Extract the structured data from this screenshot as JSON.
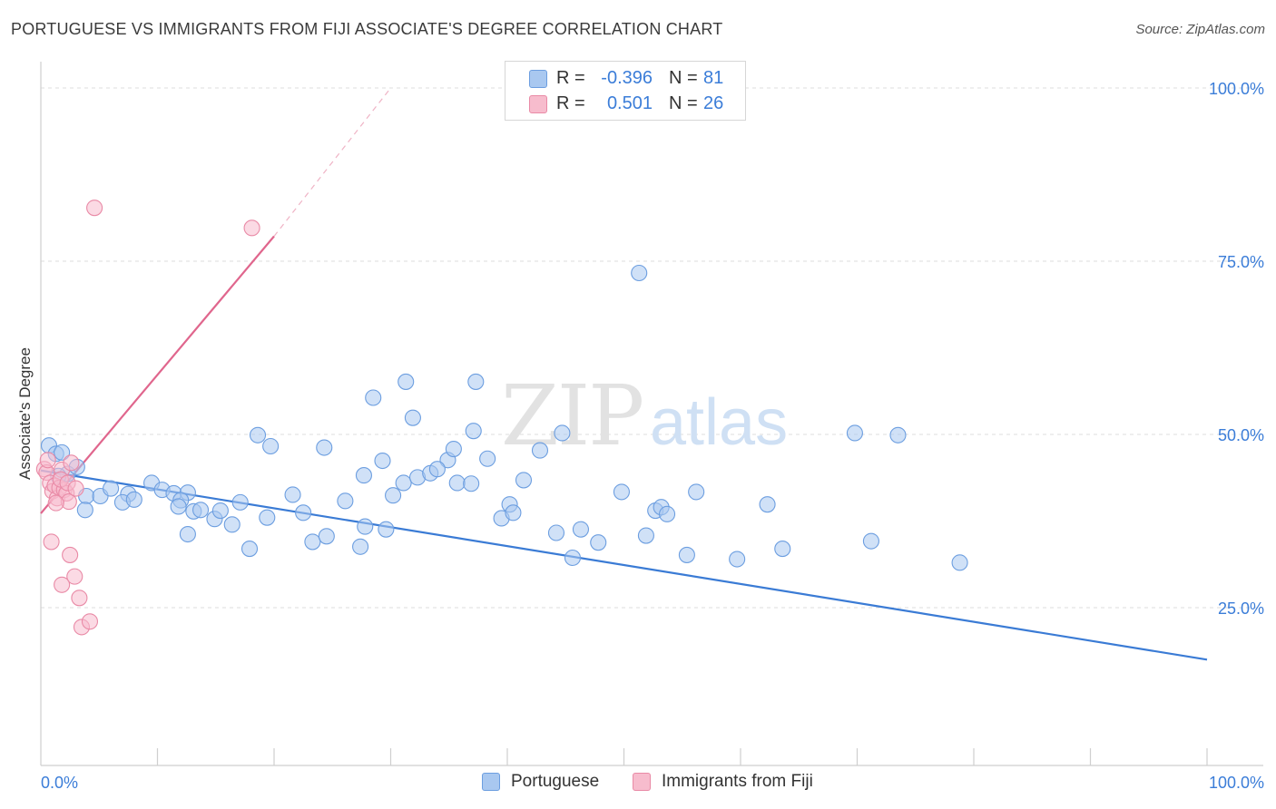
{
  "title": "PORTUGUESE VS IMMIGRANTS FROM FIJI ASSOCIATE'S DEGREE CORRELATION CHART",
  "source": "Source: ZipAtlas.com",
  "watermark": {
    "zip": "ZIP",
    "atlas": "atlas"
  },
  "legend": {
    "rows": [
      {
        "r_label": "R =",
        "r_value": "-0.396",
        "n_label": "N =",
        "n_value": "81",
        "color": "#a9c8f0",
        "border": "#6c9ee0"
      },
      {
        "r_label": "R =",
        "r_value": "0.501",
        "n_label": "N =",
        "n_value": "26",
        "color": "#f7bccd",
        "border": "#e98aa6"
      }
    ]
  },
  "bottom_legend": [
    {
      "label": "Portuguese",
      "color": "#a9c8f0",
      "border": "#6c9ee0"
    },
    {
      "label": "Immigrants from Fiji",
      "color": "#f7bccd",
      "border": "#e98aa6"
    }
  ],
  "chart_data": {
    "type": "scatter",
    "ylabel": "Associate's Degree",
    "xlabel": "",
    "xlim": [
      0,
      100
    ],
    "ylim": [
      0,
      100
    ],
    "x_tick_labels": [
      "0.0%",
      "100.0%"
    ],
    "y_tick_labels": [
      {
        "value": 100,
        "label": "100.0%"
      },
      {
        "value": 75,
        "label": "75.0%"
      },
      {
        "value": 50,
        "label": "50.0%"
      },
      {
        "value": 25,
        "label": "25.0%"
      }
    ],
    "grid": true,
    "colors": {
      "portuguese": "#3a7bd5",
      "fiji": "#e0668d",
      "axis_text": "#3b7dd8"
    },
    "series": [
      {
        "name": "Portuguese",
        "color": "#a9c8f0",
        "stroke": "#6c9ee0",
        "trend": {
          "x": [
            0,
            100
          ],
          "y": [
            44.8,
            17.5
          ]
        },
        "points": [
          [
            0.7,
            48.4
          ],
          [
            1.3,
            47.2
          ],
          [
            1.8,
            47.4
          ],
          [
            2.3,
            44.3
          ],
          [
            3.1,
            45.3
          ],
          [
            1.5,
            44.0
          ],
          [
            3.9,
            41.1
          ],
          [
            3.8,
            39.1
          ],
          [
            5.1,
            41.1
          ],
          [
            6.0,
            42.2
          ],
          [
            7.5,
            41.4
          ],
          [
            7.0,
            40.2
          ],
          [
            8.0,
            40.6
          ],
          [
            9.5,
            43.0
          ],
          [
            10.4,
            42.0
          ],
          [
            11.4,
            41.5
          ],
          [
            12.6,
            41.6
          ],
          [
            12.0,
            40.5
          ],
          [
            13.1,
            38.9
          ],
          [
            12.6,
            35.6
          ],
          [
            11.8,
            39.6
          ],
          [
            13.7,
            39.1
          ],
          [
            14.9,
            37.8
          ],
          [
            15.4,
            39.0
          ],
          [
            16.4,
            37.0
          ],
          [
            17.9,
            33.5
          ],
          [
            17.1,
            40.2
          ],
          [
            19.4,
            38.0
          ],
          [
            18.6,
            49.9
          ],
          [
            19.7,
            48.3
          ],
          [
            21.6,
            41.3
          ],
          [
            22.5,
            38.7
          ],
          [
            23.3,
            34.5
          ],
          [
            24.5,
            35.3
          ],
          [
            24.3,
            48.1
          ],
          [
            26.1,
            40.4
          ],
          [
            27.7,
            44.1
          ],
          [
            29.3,
            46.2
          ],
          [
            30.2,
            41.2
          ],
          [
            28.5,
            55.3
          ],
          [
            31.3,
            57.6
          ],
          [
            31.9,
            52.4
          ],
          [
            27.4,
            33.8
          ],
          [
            27.8,
            36.7
          ],
          [
            29.6,
            36.3
          ],
          [
            31.1,
            43.0
          ],
          [
            32.3,
            43.8
          ],
          [
            33.4,
            44.4
          ],
          [
            34.9,
            46.3
          ],
          [
            35.7,
            43.0
          ],
          [
            34.0,
            45.0
          ],
          [
            35.4,
            47.9
          ],
          [
            36.9,
            42.9
          ],
          [
            38.3,
            46.5
          ],
          [
            37.3,
            57.6
          ],
          [
            37.1,
            50.5
          ],
          [
            39.5,
            37.9
          ],
          [
            40.2,
            39.9
          ],
          [
            41.4,
            43.4
          ],
          [
            40.5,
            38.7
          ],
          [
            42.8,
            47.7
          ],
          [
            44.7,
            50.2
          ],
          [
            44.2,
            35.8
          ],
          [
            45.6,
            32.2
          ],
          [
            46.3,
            36.3
          ],
          [
            47.8,
            34.4
          ],
          [
            49.8,
            41.7
          ],
          [
            51.3,
            73.3
          ],
          [
            51.9,
            35.4
          ],
          [
            52.7,
            39.0
          ],
          [
            53.2,
            39.5
          ],
          [
            53.7,
            38.5
          ],
          [
            55.4,
            32.6
          ],
          [
            56.2,
            41.7
          ],
          [
            59.7,
            32.0
          ],
          [
            62.3,
            39.9
          ],
          [
            63.6,
            33.5
          ],
          [
            69.8,
            50.2
          ],
          [
            71.2,
            34.6
          ],
          [
            73.5,
            49.9
          ],
          [
            78.8,
            31.5
          ]
        ]
      },
      {
        "name": "Immigrants from Fiji",
        "color": "#f7bccd",
        "stroke": "#e98aa6",
        "trend": {
          "x": [
            0,
            20
          ],
          "y": [
            38.6,
            78.6
          ],
          "dash_to": [
            30,
            100
          ]
        },
        "points": [
          [
            0.3,
            45.0
          ],
          [
            0.5,
            44.5
          ],
          [
            0.6,
            46.3
          ],
          [
            0.8,
            43.0
          ],
          [
            1.0,
            41.8
          ],
          [
            1.2,
            42.6
          ],
          [
            1.4,
            40.8
          ],
          [
            1.6,
            42.3
          ],
          [
            1.8,
            44.9
          ],
          [
            2.0,
            42.0
          ],
          [
            2.2,
            41.5
          ],
          [
            2.4,
            40.3
          ],
          [
            2.6,
            45.9
          ],
          [
            1.3,
            40.1
          ],
          [
            1.7,
            43.5
          ],
          [
            2.3,
            43.0
          ],
          [
            3.0,
            42.2
          ],
          [
            0.9,
            34.5
          ],
          [
            1.8,
            28.3
          ],
          [
            2.5,
            32.6
          ],
          [
            2.9,
            29.5
          ],
          [
            3.3,
            26.4
          ],
          [
            3.5,
            22.2
          ],
          [
            4.2,
            23.0
          ],
          [
            4.6,
            82.7
          ],
          [
            18.1,
            79.8
          ]
        ]
      }
    ]
  }
}
